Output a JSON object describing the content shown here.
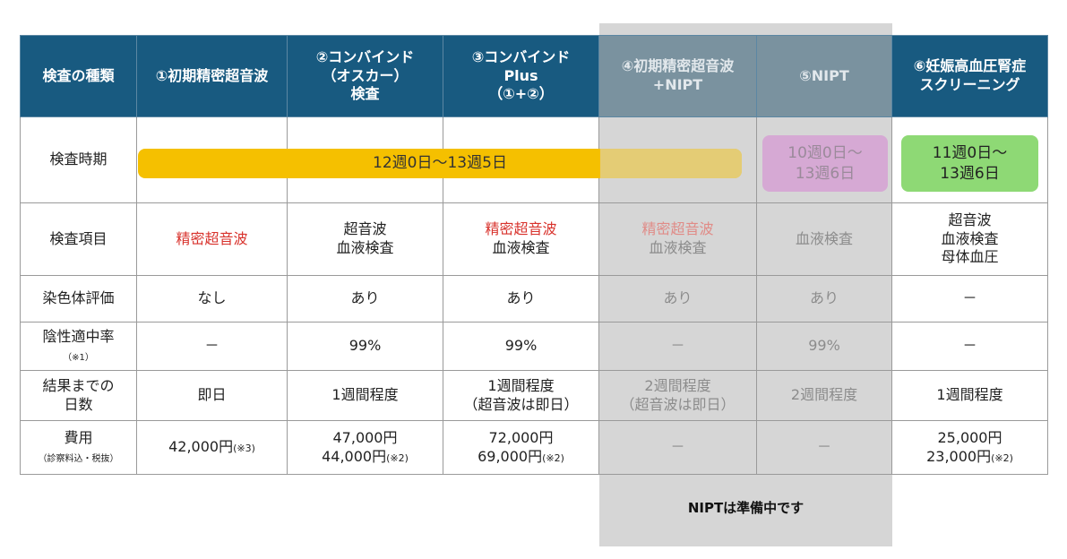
{
  "headers": [
    "検査の種類",
    "①初期精密超音波",
    "②コンバインド\n（オスカー）\n検査",
    "③コンバインド\nPlus\n（①+②）",
    "④初期精密超音波\n+NIPT",
    "⑤NIPT",
    "⑥妊娠高血圧腎症\nスクリーニング"
  ],
  "period": {
    "label": "検査時期",
    "bar_main": "12週0日～13週5日",
    "bar_nipt": "10週0日～\n13週6日",
    "bar_pih": "11週0日～\n13週6日"
  },
  "items": {
    "label": "検査項目",
    "c1": "精密超音波",
    "c2": "超音波\n血液検査",
    "c3_red": "精密超音波",
    "c3_rest": "血液検査",
    "c4_red": "精密超音波",
    "c4_rest": "血液検査",
    "c5": "血液検査",
    "c6": "超音波\n血液検査\n母体血圧"
  },
  "chromosome": {
    "label": "染色体評価",
    "values": [
      "なし",
      "あり",
      "あり",
      "あり",
      "あり",
      "－"
    ]
  },
  "npv": {
    "label": "陰性適中率",
    "note": "（※1）",
    "values": [
      "－",
      "99%",
      "99%",
      "－",
      "99%",
      "－"
    ]
  },
  "days": {
    "label": "結果までの\n日数",
    "values": [
      "即日",
      "1週間程度",
      "1週間程度\n（超音波は即日）",
      "2週間程度\n（超音波は即日）",
      "2週間程度",
      "1週間程度"
    ]
  },
  "cost": {
    "label": "費用",
    "sublabel": "（診察料込・税抜）",
    "c1": "42,000円",
    "c1_note": "(※3)",
    "c2_a": "47,000円",
    "c2_b": "44,000円",
    "c2_note": "(※2)",
    "c3_a": "72,000円",
    "c3_b": "69,000円",
    "c3_note": "(※2)",
    "c4": "－",
    "c5": "－",
    "c6_a": "25,000円",
    "c6_b": "23,000円",
    "c6_note": "(※2)"
  },
  "footer_note": "NIPTは準備中です",
  "colors": {
    "header_bg": "#185a80",
    "header_dim_bg": "#7a929f",
    "bar_main": "#f5c000",
    "bar_nipt": "#d6a9d4",
    "bar_pih": "#8ed975",
    "red_text": "#d8322c",
    "gray_band": "#d6d6d6"
  }
}
